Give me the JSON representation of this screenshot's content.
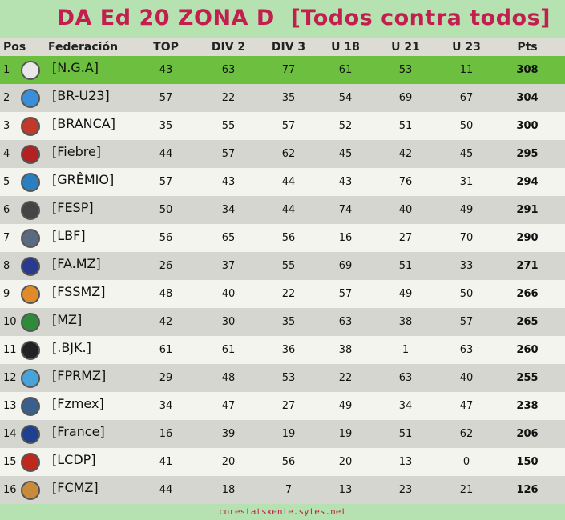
{
  "title": "DA Ed 20 ZONA D  [Todos contra todos]",
  "columns": [
    "Pos",
    "Federación",
    "TOP",
    "DIV 2",
    "DIV 3",
    "U 18",
    "U 21",
    "U 23",
    "Pts"
  ],
  "rows": [
    {
      "pos": "1",
      "fed": "[N.G.A]",
      "top": "43",
      "div2": "63",
      "div3": "77",
      "u18": "61",
      "u21": "53",
      "u23": "11",
      "pts": "308",
      "logo_color": "#e8e8e8"
    },
    {
      "pos": "2",
      "fed": "[BR-U23]",
      "top": "57",
      "div2": "22",
      "div3": "35",
      "u18": "54",
      "u21": "69",
      "u23": "67",
      "pts": "304",
      "logo_color": "#3a8fd8"
    },
    {
      "pos": "3",
      "fed": "[BRANCA]",
      "top": "35",
      "div2": "55",
      "div3": "57",
      "u18": "52",
      "u21": "51",
      "u23": "50",
      "pts": "300",
      "logo_color": "#c0392b"
    },
    {
      "pos": "4",
      "fed": "[Fiebre]",
      "top": "44",
      "div2": "57",
      "div3": "62",
      "u18": "45",
      "u21": "42",
      "u23": "45",
      "pts": "295",
      "logo_color": "#b22222"
    },
    {
      "pos": "5",
      "fed": "[GRÊMIO]",
      "top": "57",
      "div2": "43",
      "div3": "44",
      "u18": "43",
      "u21": "76",
      "u23": "31",
      "pts": "294",
      "logo_color": "#2b7fc0"
    },
    {
      "pos": "6",
      "fed": "[FESP]",
      "top": "50",
      "div2": "34",
      "div3": "44",
      "u18": "74",
      "u21": "40",
      "u23": "49",
      "pts": "291",
      "logo_color": "#444444"
    },
    {
      "pos": "7",
      "fed": "[LBF]",
      "top": "56",
      "div2": "65",
      "div3": "56",
      "u18": "16",
      "u21": "27",
      "u23": "70",
      "pts": "290",
      "logo_color": "#5a6a80"
    },
    {
      "pos": "8",
      "fed": "[FA.MZ]",
      "top": "26",
      "div2": "37",
      "div3": "55",
      "u18": "69",
      "u21": "51",
      "u23": "33",
      "pts": "271",
      "logo_color": "#2a3b8f"
    },
    {
      "pos": "9",
      "fed": "[FSSMZ]",
      "top": "48",
      "div2": "40",
      "div3": "22",
      "u18": "57",
      "u21": "49",
      "u23": "50",
      "pts": "266",
      "logo_color": "#e08a2a"
    },
    {
      "pos": "10",
      "fed": "[MZ]",
      "top": "42",
      "div2": "30",
      "div3": "35",
      "u18": "63",
      "u21": "38",
      "u23": "57",
      "pts": "265",
      "logo_color": "#2e8b3a"
    },
    {
      "pos": "11",
      "fed": "[.BJK.]",
      "top": "61",
      "div2": "61",
      "div3": "36",
      "u18": "38",
      "u21": "1",
      "u23": "63",
      "pts": "260",
      "logo_color": "#222222"
    },
    {
      "pos": "12",
      "fed": "[FPRMZ]",
      "top": "29",
      "div2": "48",
      "div3": "53",
      "u18": "22",
      "u21": "63",
      "u23": "40",
      "pts": "255",
      "logo_color": "#4aa3d8"
    },
    {
      "pos": "13",
      "fed": "[Fzmex]",
      "top": "34",
      "div2": "47",
      "div3": "27",
      "u18": "49",
      "u21": "34",
      "u23": "47",
      "pts": "238",
      "logo_color": "#3a5f8a"
    },
    {
      "pos": "14",
      "fed": "[France]",
      "top": "16",
      "div2": "39",
      "div3": "19",
      "u18": "19",
      "u21": "51",
      "u23": "62",
      "pts": "206",
      "logo_color": "#1f3f8f"
    },
    {
      "pos": "15",
      "fed": "[LCDP]",
      "top": "41",
      "div2": "20",
      "div3": "56",
      "u18": "20",
      "u21": "13",
      "u23": "0",
      "pts": "150",
      "logo_color": "#c0281e"
    },
    {
      "pos": "16",
      "fed": "[FCMZ]",
      "top": "44",
      "div2": "18",
      "div3": "7",
      "u18": "13",
      "u21": "23",
      "u23": "21",
      "pts": "126",
      "logo_color": "#c98a3a"
    }
  ],
  "footer": "corestatsxente.sytes.net"
}
